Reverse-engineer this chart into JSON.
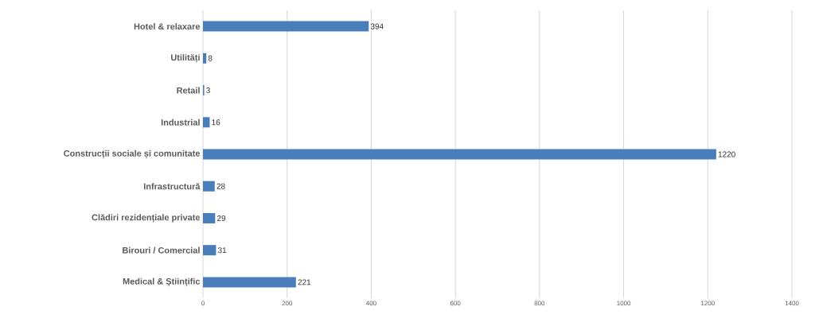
{
  "chart_data": {
    "type": "bar",
    "orientation": "horizontal",
    "categories": [
      "Hotel & relaxare",
      "Utilități",
      "Retail",
      "Industrial",
      "Construcții sociale și comunitate",
      "Infrastructură",
      "Clădiri rezidențiale private",
      "Birouri / Comercial",
      "Medical & Științific"
    ],
    "values": [
      394,
      8,
      3,
      16,
      1220,
      28,
      29,
      31,
      221
    ],
    "color": "#4a7ebb",
    "xlim": [
      0,
      1400
    ],
    "xticks": [
      0,
      200,
      400,
      600,
      800,
      1000,
      1200,
      1400
    ],
    "grid": "x",
    "data_labels": true
  }
}
